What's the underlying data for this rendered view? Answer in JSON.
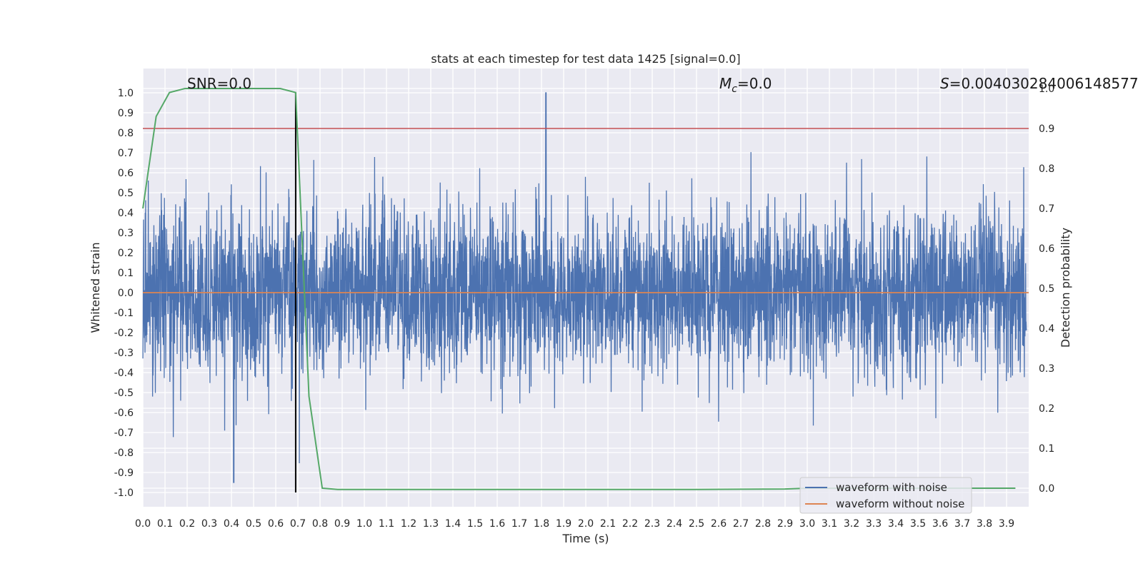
{
  "chart_data": {
    "type": "line",
    "title": "stats at each timestep for test data 1425 [signal=0.0]",
    "xlabel": "Time (s)",
    "ylabel_left": "Whitened strain",
    "ylabel_right": "Detection probability",
    "xlim": [
      0,
      4
    ],
    "ylim_left": [
      -1.1,
      1.1
    ],
    "ylim_right": [
      -0.05,
      1.0
    ],
    "x_ticks": [
      "0.0",
      "0.1",
      "0.2",
      "0.3",
      "0.4",
      "0.5",
      "0.6",
      "0.7",
      "0.8",
      "0.9",
      "1.0",
      "1.1",
      "1.2",
      "1.3",
      "1.4",
      "1.5",
      "1.6",
      "1.7",
      "1.8",
      "1.9",
      "2.0",
      "2.1",
      "2.2",
      "2.3",
      "2.4",
      "2.5",
      "2.6",
      "2.7",
      "2.8",
      "2.9",
      "3.0",
      "3.1",
      "3.2",
      "3.3",
      "3.4",
      "3.5",
      "3.6",
      "3.7",
      "3.8",
      "3.9"
    ],
    "y_ticks_left": [
      "1.0",
      "0.9",
      "0.8",
      "0.7",
      "0.6",
      "0.5",
      "0.4",
      "0.3",
      "0.2",
      "0.1",
      "0.0",
      "-0.1",
      "-0.2",
      "-0.3",
      "-0.4",
      "-0.5",
      "-0.6",
      "-0.7",
      "-0.8",
      "-0.9",
      "-1.0"
    ],
    "y_ticks_right": [
      "1.0",
      "0.9",
      "0.8",
      "0.7",
      "0.6",
      "0.5",
      "0.4",
      "0.3",
      "0.2",
      "0.1",
      "0.0"
    ],
    "annotations": {
      "snr": "SNR=0.0",
      "mc_symbol": "M",
      "mc_sub": "c",
      "mc_value": "=0.0",
      "s_symbol": "S",
      "s_value": "=0.004030284006148577"
    },
    "grid": true,
    "legend_position": "lower-right",
    "series": [
      {
        "name": "waveform with noise",
        "color": "#4c72b0",
        "axis": "left",
        "description_values": "dense whitened noise, mostly within ±0.45 with peaks near ±0.8, one spike to 1.0 near t=1.82"
      },
      {
        "name": "waveform without noise",
        "color": "#dd8452",
        "axis": "left",
        "x": [
          0.0,
          4.0
        ],
        "y": [
          0.0,
          0.0
        ]
      },
      {
        "name": "",
        "color": "#55a868",
        "axis": "right",
        "x": [
          0.0,
          0.06,
          0.12,
          0.19,
          0.25,
          0.31,
          0.38,
          0.44,
          0.5,
          0.56,
          0.62,
          0.69,
          0.75,
          0.81,
          0.88,
          0.94,
          1.0,
          1.5,
          2.0,
          2.5,
          2.9,
          3.0,
          3.5,
          3.94
        ],
        "y": [
          0.7,
          0.93,
          0.99,
          1.0,
          1.0,
          1.0,
          1.0,
          1.0,
          1.0,
          1.0,
          1.0,
          0.99,
          0.23,
          0.0,
          -0.003,
          -0.003,
          -0.003,
          -0.003,
          -0.003,
          -0.003,
          -0.002,
          0.0,
          0.0,
          0.0
        ]
      }
    ],
    "threshold_line": {
      "color": "#c44e52",
      "y_right": 0.9
    },
    "vertical_marker": {
      "color": "#000000",
      "x": 0.69,
      "y_range_left": [
        -1.0,
        1.0
      ]
    }
  }
}
